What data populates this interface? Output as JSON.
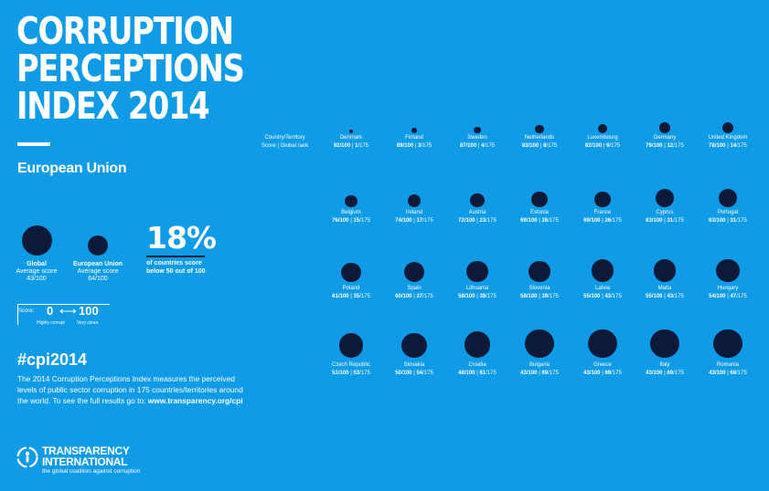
{
  "title": {
    "line1": "CORRUPTION",
    "line2": "PERCEPTIONS",
    "line3": "INDEX 2014"
  },
  "region": "European Union",
  "legend": {
    "global": {
      "label": "Global",
      "sub": "Average score",
      "score": "43/100"
    },
    "eu": {
      "label": "European Union",
      "sub": "Average score",
      "score": "64/100"
    }
  },
  "stat": {
    "value": "18%",
    "line1": "of countries score",
    "line2": "below 50 out of 100"
  },
  "scale": {
    "label": "Score:",
    "min": "0",
    "arrow": "⟷",
    "max": "100",
    "min_caption": "Highly corrupt",
    "max_caption": "Very clean"
  },
  "hashtag": "#cpi2014",
  "description": "The 2014 Corruption Perceptions Index measures the perceived levels of public sector corruption in 175 countries/territories around the world. To see the full results go to: ",
  "url": "www.transparency.org/cpi",
  "logo": {
    "line1": "TRANSPARENCY",
    "line2": "INTERNATIONAL",
    "tagline": "the global coalition against corruption"
  },
  "grid_header": {
    "line1": "Country/Territory",
    "line2": "Score | Global rank"
  },
  "colors": {
    "background": "#0f9be6",
    "dot": "#0c1a3a"
  },
  "countries": [
    {
      "name": "Denmark",
      "score": "92/100",
      "rank": "1",
      "total": "/175"
    },
    {
      "name": "Finland",
      "score": "89/100",
      "rank": "3",
      "total": "/175"
    },
    {
      "name": "Sweden",
      "score": "87/100",
      "rank": "4",
      "total": "/175"
    },
    {
      "name": "Netherlands",
      "score": "83/100",
      "rank": "8",
      "total": "/175"
    },
    {
      "name": "Luxembourg",
      "score": "82/100",
      "rank": "9",
      "total": "/175"
    },
    {
      "name": "Germany",
      "score": "79/100",
      "rank": "12",
      "total": "/175"
    },
    {
      "name": "United Kingdom",
      "score": "78/100",
      "rank": "14",
      "total": "/175"
    },
    {
      "name": "Belgium",
      "score": "76/100",
      "rank": "15",
      "total": "/175"
    },
    {
      "name": "Ireland",
      "score": "74/100",
      "rank": "17",
      "total": "/175"
    },
    {
      "name": "Austria",
      "score": "72/100",
      "rank": "23",
      "total": "/175"
    },
    {
      "name": "Estonia",
      "score": "69/100",
      "rank": "26",
      "total": "/175"
    },
    {
      "name": "France",
      "score": "69/100",
      "rank": "26",
      "total": "/175"
    },
    {
      "name": "Cyprus",
      "score": "63/100",
      "rank": "31",
      "total": "/175"
    },
    {
      "name": "Portugal",
      "score": "63/100",
      "rank": "31",
      "total": "/175"
    },
    {
      "name": "Poland",
      "score": "61/100",
      "rank": "35",
      "total": "/175"
    },
    {
      "name": "Spain",
      "score": "60/100",
      "rank": "37",
      "total": "/175"
    },
    {
      "name": "Lithuania",
      "score": "58/100",
      "rank": "39",
      "total": "/175"
    },
    {
      "name": "Slovenia",
      "score": "58/100",
      "rank": "39",
      "total": "/175"
    },
    {
      "name": "Latvia",
      "score": "55/100",
      "rank": "43",
      "total": "/175"
    },
    {
      "name": "Malta",
      "score": "55/100",
      "rank": "43",
      "total": "/175"
    },
    {
      "name": "Hungary",
      "score": "54/100",
      "rank": "47",
      "total": "/175"
    },
    {
      "name": "Czech Republic",
      "score": "51/100",
      "rank": "53",
      "total": "/175"
    },
    {
      "name": "Slovakia",
      "score": "50/100",
      "rank": "54",
      "total": "/175"
    },
    {
      "name": "Croatia",
      "score": "48/100",
      "rank": "61",
      "total": "/175"
    },
    {
      "name": "Bulgaria",
      "score": "43/100",
      "rank": "69",
      "total": "/175"
    },
    {
      "name": "Greece",
      "score": "43/100",
      "rank": "69",
      "total": "/175"
    },
    {
      "name": "Italy",
      "score": "43/100",
      "rank": "69",
      "total": "/175"
    },
    {
      "name": "Romania",
      "score": "43/100",
      "rank": "69",
      "total": "/175"
    }
  ]
}
